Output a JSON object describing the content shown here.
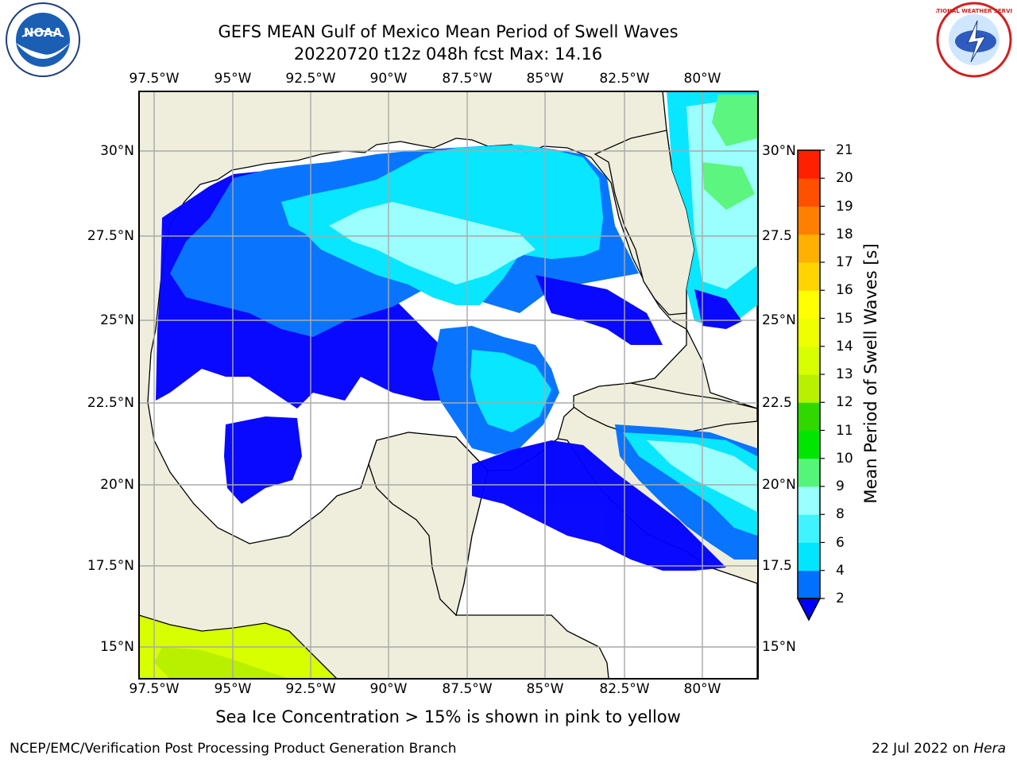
{
  "title": {
    "line1": "GEFS MEAN Gulf of Mexico Mean Period of Swell Waves",
    "line2": "20220720 t12z 048h fcst   Max: 14.16"
  },
  "logos": {
    "left": {
      "text": "NOAA",
      "icon": "noaa-logo"
    },
    "right": {
      "text": "NATIONAL WEATHER SERVICE",
      "icon": "nws-logo"
    }
  },
  "axes": {
    "lon_ticks": [
      "97.5°W",
      "95°W",
      "92.5°W",
      "90°W",
      "87.5°W",
      "85°W",
      "82.5°W",
      "80°W"
    ],
    "lat_ticks_left": [
      "30°N",
      "27.5°N",
      "25°N",
      "22.5°N",
      "20°N",
      "17.5°N",
      "15°N"
    ],
    "lat_ticks_right": [
      "30°N",
      "27.5",
      "25°N",
      "22.5",
      "20°N",
      "17.5",
      "15°N"
    ]
  },
  "colorbar": {
    "label": "Mean Period of Swell Waves [s]",
    "ticks": [
      "2",
      "4",
      "6",
      "8",
      "9",
      "10",
      "11",
      "12",
      "13",
      "14",
      "15",
      "16",
      "17",
      "18",
      "19",
      "20",
      "21"
    ],
    "colors": [
      "#0070ff",
      "#00e6ff",
      "#40f4ff",
      "#99ffff",
      "#55f57a",
      "#00e600",
      "#30d800",
      "#b8f000",
      "#d8ff00",
      "#f0ff00",
      "#ffff00",
      "#ffd400",
      "#ffb000",
      "#ff8000",
      "#ff5000",
      "#ff2000"
    ],
    "under_color": "#0000ff"
  },
  "map_colors": {
    "land": "#efeedc",
    "ocean_blank": "#ffffff",
    "deep_blue": "#0000ff",
    "mid_blue": "#0070ff",
    "cyan": "#00e6ff",
    "light_cyan": "#99ffff",
    "green": "#55f57a",
    "yellow_green": "#d8ff00"
  },
  "note": "Sea Ice Concentration > 15% is shown in pink to yellow",
  "footer": {
    "left": "NCEP/EMC/Verification Post Processing Product Generation Branch",
    "right_date": "22 Jul 2022 on ",
    "right_host": "Hera"
  }
}
